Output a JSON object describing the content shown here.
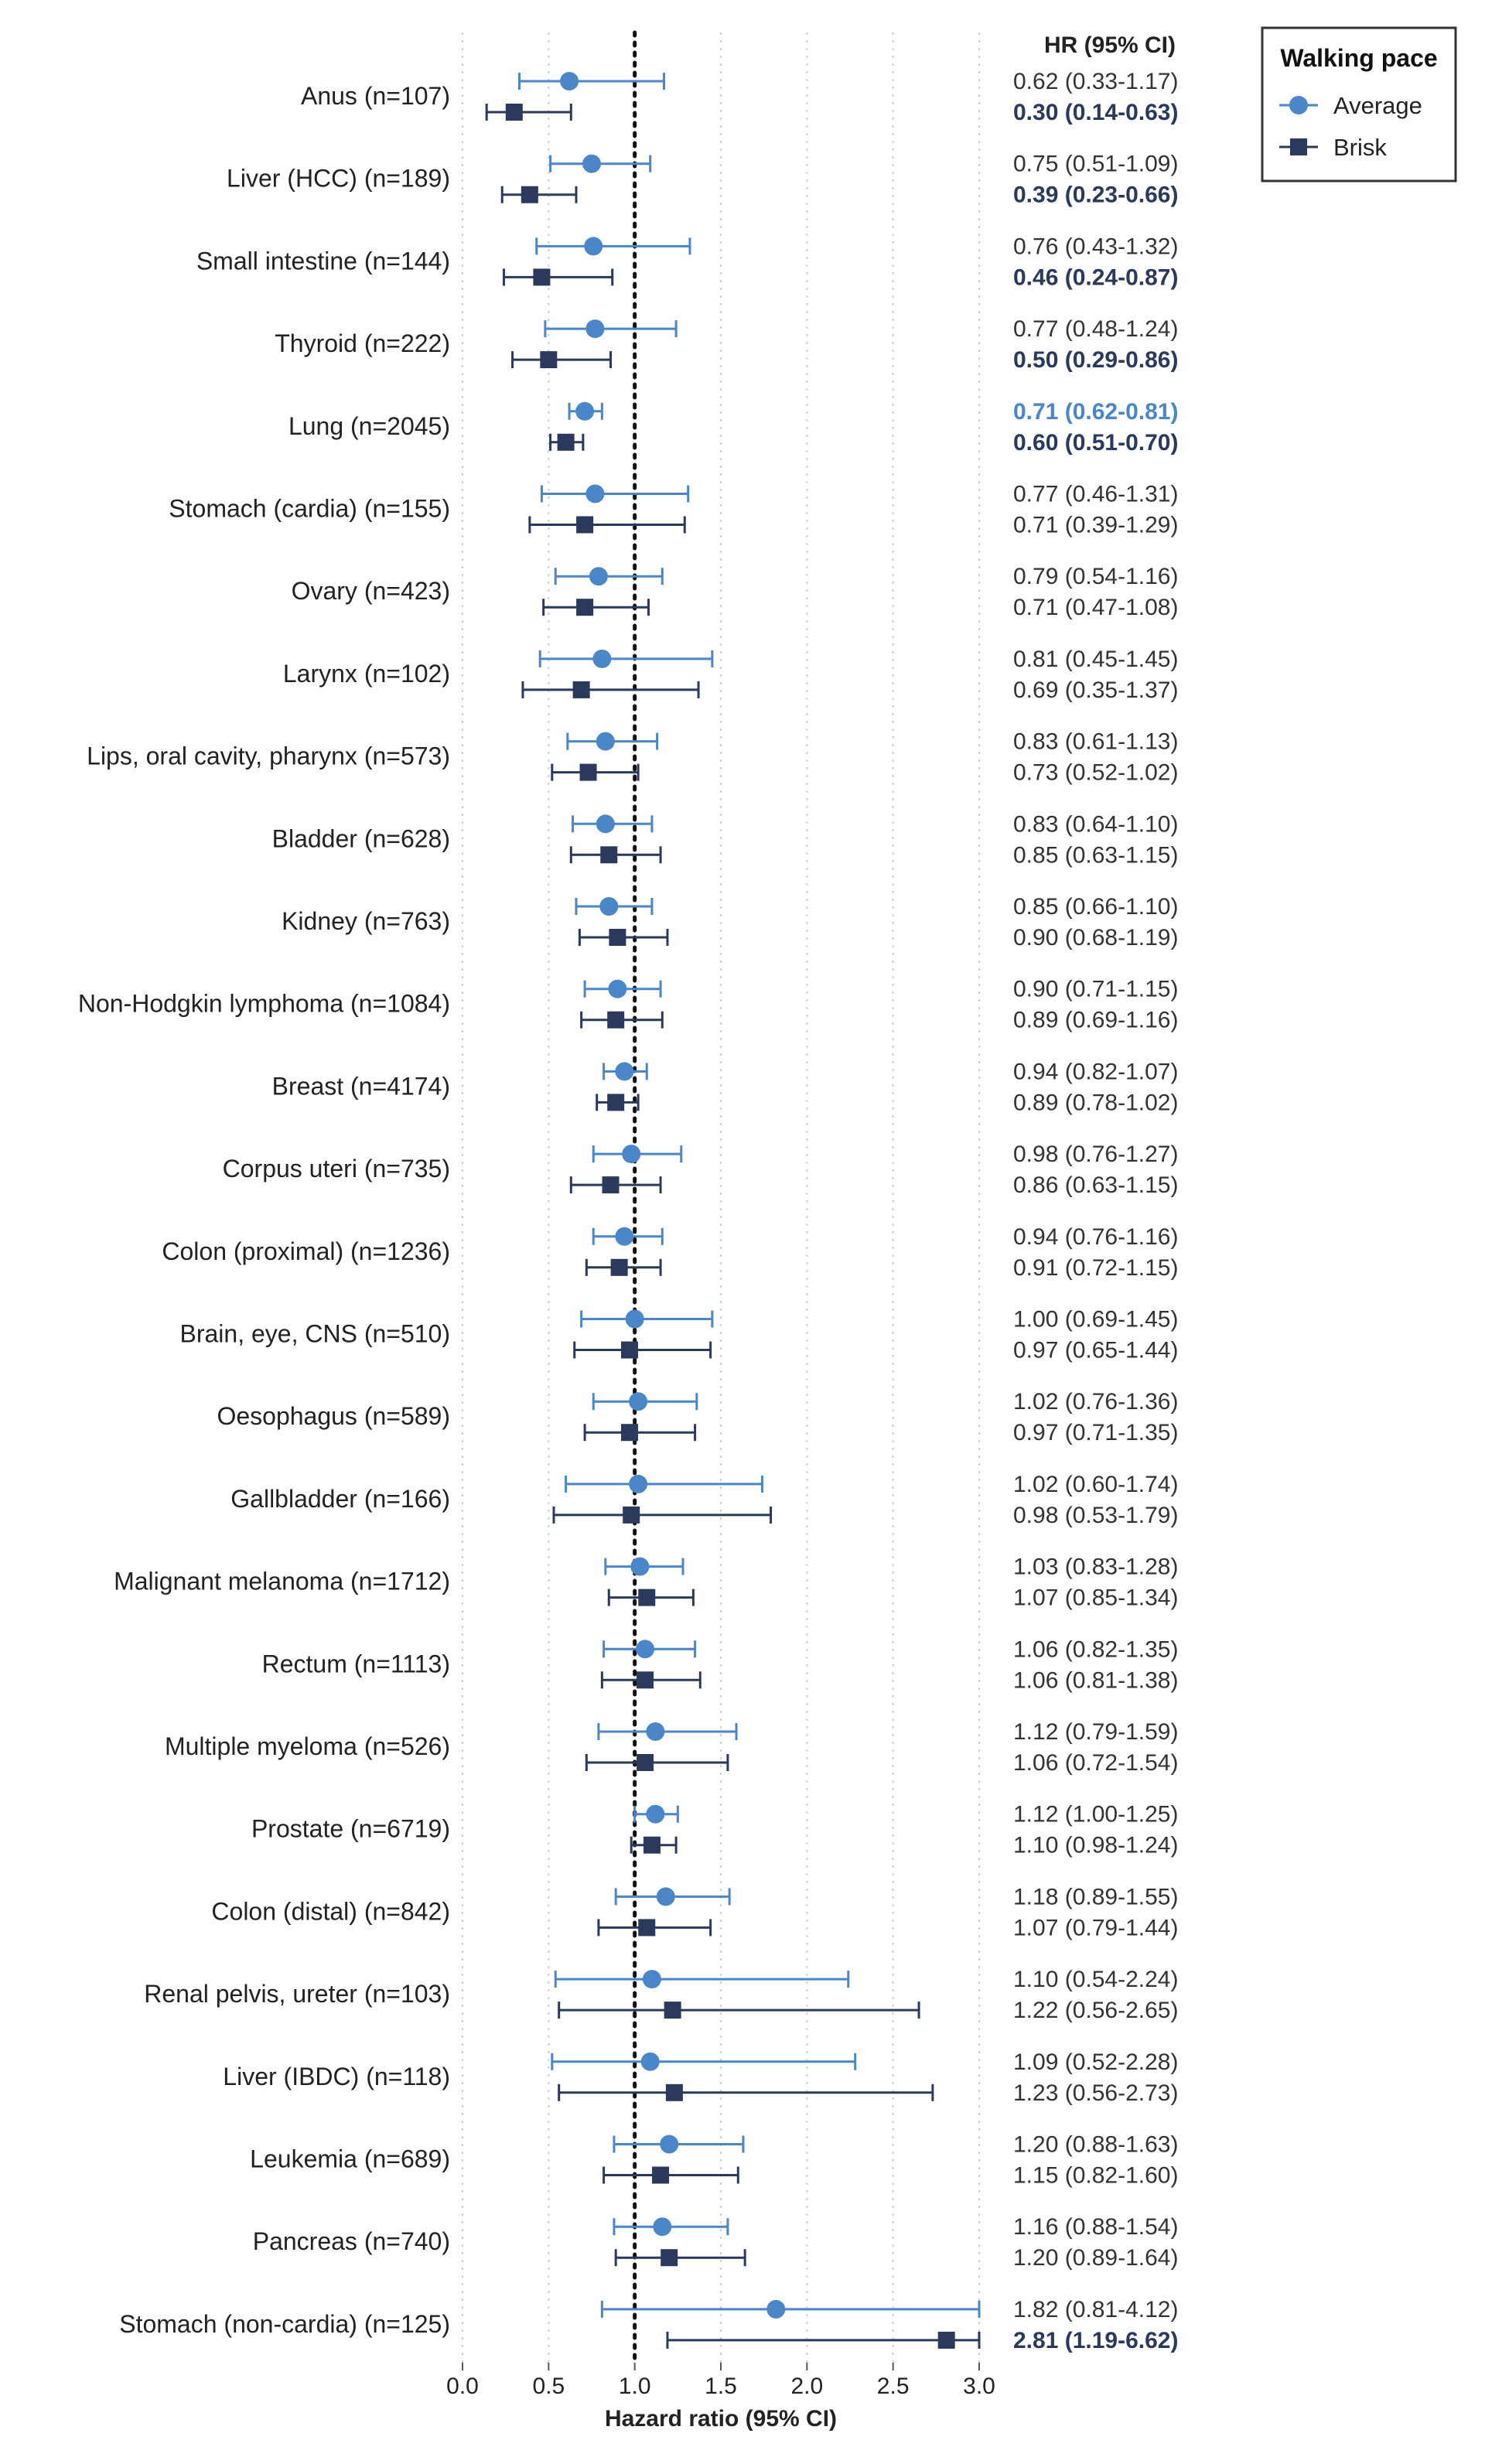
{
  "chart_data": {
    "type": "scatter",
    "subtype": "forest-plot",
    "xlabel": "Hazard ratio (95% CI)",
    "xlim": [
      0.0,
      3.0
    ],
    "xticks": [
      0.0,
      0.5,
      1.0,
      1.5,
      2.0,
      2.5,
      3.0
    ],
    "xtick_labels": [
      "0.0",
      "0.5",
      "1.0",
      "1.5",
      "2.0",
      "2.5",
      "3.0"
    ],
    "reference_line": 1.0,
    "grid": true,
    "hr_column_header": "HR (95% CI)",
    "legend": {
      "title": "Walking pace",
      "placement": "top-right",
      "entries": [
        {
          "name": "Average",
          "marker": "circle",
          "color": "#4a86c8"
        },
        {
          "name": "Brisk",
          "marker": "square",
          "color": "#2b3a5c"
        }
      ]
    },
    "series": [
      {
        "name": "Average",
        "color": "#4a86c8",
        "marker": "circle"
      },
      {
        "name": "Brisk",
        "color": "#2b3a5c",
        "marker": "square"
      }
    ],
    "rows": [
      {
        "label": "Anus (n=107)",
        "average": {
          "hr": 0.62,
          "lo": 0.33,
          "hi": 1.17,
          "text": "0.62 (0.33-1.17)",
          "sig": false
        },
        "brisk": {
          "hr": 0.3,
          "lo": 0.14,
          "hi": 0.63,
          "text": "0.30 (0.14-0.63)",
          "sig": true
        }
      },
      {
        "label": "Liver (HCC) (n=189)",
        "average": {
          "hr": 0.75,
          "lo": 0.51,
          "hi": 1.09,
          "text": "0.75 (0.51-1.09)",
          "sig": false
        },
        "brisk": {
          "hr": 0.39,
          "lo": 0.23,
          "hi": 0.66,
          "text": "0.39 (0.23-0.66)",
          "sig": true
        }
      },
      {
        "label": "Small intestine (n=144)",
        "average": {
          "hr": 0.76,
          "lo": 0.43,
          "hi": 1.32,
          "text": "0.76 (0.43-1.32)",
          "sig": false
        },
        "brisk": {
          "hr": 0.46,
          "lo": 0.24,
          "hi": 0.87,
          "text": "0.46 (0.24-0.87)",
          "sig": true
        }
      },
      {
        "label": "Thyroid (n=222)",
        "average": {
          "hr": 0.77,
          "lo": 0.48,
          "hi": 1.24,
          "text": "0.77 (0.48-1.24)",
          "sig": false
        },
        "brisk": {
          "hr": 0.5,
          "lo": 0.29,
          "hi": 0.86,
          "text": "0.50 (0.29-0.86)",
          "sig": true
        }
      },
      {
        "label": "Lung (n=2045)",
        "average": {
          "hr": 0.71,
          "lo": 0.62,
          "hi": 0.81,
          "text": "0.71 (0.62-0.81)",
          "sig": true
        },
        "brisk": {
          "hr": 0.6,
          "lo": 0.51,
          "hi": 0.7,
          "text": "0.60 (0.51-0.70)",
          "sig": true
        }
      },
      {
        "label": "Stomach (cardia) (n=155)",
        "average": {
          "hr": 0.77,
          "lo": 0.46,
          "hi": 1.31,
          "text": "0.77 (0.46-1.31)",
          "sig": false
        },
        "brisk": {
          "hr": 0.71,
          "lo": 0.39,
          "hi": 1.29,
          "text": "0.71 (0.39-1.29)",
          "sig": false
        }
      },
      {
        "label": "Ovary (n=423)",
        "average": {
          "hr": 0.79,
          "lo": 0.54,
          "hi": 1.16,
          "text": "0.79 (0.54-1.16)",
          "sig": false
        },
        "brisk": {
          "hr": 0.71,
          "lo": 0.47,
          "hi": 1.08,
          "text": "0.71 (0.47-1.08)",
          "sig": false
        }
      },
      {
        "label": "Larynx (n=102)",
        "average": {
          "hr": 0.81,
          "lo": 0.45,
          "hi": 1.45,
          "text": "0.81 (0.45-1.45)",
          "sig": false
        },
        "brisk": {
          "hr": 0.69,
          "lo": 0.35,
          "hi": 1.37,
          "text": "0.69 (0.35-1.37)",
          "sig": false
        }
      },
      {
        "label": "Lips, oral cavity, pharynx (n=573)",
        "average": {
          "hr": 0.83,
          "lo": 0.61,
          "hi": 1.13,
          "text": "0.83 (0.61-1.13)",
          "sig": false
        },
        "brisk": {
          "hr": 0.73,
          "lo": 0.52,
          "hi": 1.02,
          "text": "0.73 (0.52-1.02)",
          "sig": false
        }
      },
      {
        "label": "Bladder (n=628)",
        "average": {
          "hr": 0.83,
          "lo": 0.64,
          "hi": 1.1,
          "text": "0.83 (0.64-1.10)",
          "sig": false
        },
        "brisk": {
          "hr": 0.85,
          "lo": 0.63,
          "hi": 1.15,
          "text": "0.85 (0.63-1.15)",
          "sig": false
        }
      },
      {
        "label": "Kidney (n=763)",
        "average": {
          "hr": 0.85,
          "lo": 0.66,
          "hi": 1.1,
          "text": "0.85 (0.66-1.10)",
          "sig": false
        },
        "brisk": {
          "hr": 0.9,
          "lo": 0.68,
          "hi": 1.19,
          "text": "0.90 (0.68-1.19)",
          "sig": false
        }
      },
      {
        "label": "Non-Hodgkin lymphoma (n=1084)",
        "average": {
          "hr": 0.9,
          "lo": 0.71,
          "hi": 1.15,
          "text": "0.90 (0.71-1.15)",
          "sig": false
        },
        "brisk": {
          "hr": 0.89,
          "lo": 0.69,
          "hi": 1.16,
          "text": "0.89 (0.69-1.16)",
          "sig": false
        }
      },
      {
        "label": "Breast (n=4174)",
        "average": {
          "hr": 0.94,
          "lo": 0.82,
          "hi": 1.07,
          "text": "0.94 (0.82-1.07)",
          "sig": false
        },
        "brisk": {
          "hr": 0.89,
          "lo": 0.78,
          "hi": 1.02,
          "text": "0.89 (0.78-1.02)",
          "sig": false
        }
      },
      {
        "label": "Corpus uteri (n=735)",
        "average": {
          "hr": 0.98,
          "lo": 0.76,
          "hi": 1.27,
          "text": "0.98 (0.76-1.27)",
          "sig": false
        },
        "brisk": {
          "hr": 0.86,
          "lo": 0.63,
          "hi": 1.15,
          "text": "0.86 (0.63-1.15)",
          "sig": false
        }
      },
      {
        "label": "Colon (proximal) (n=1236)",
        "average": {
          "hr": 0.94,
          "lo": 0.76,
          "hi": 1.16,
          "text": "0.94 (0.76-1.16)",
          "sig": false
        },
        "brisk": {
          "hr": 0.91,
          "lo": 0.72,
          "hi": 1.15,
          "text": "0.91 (0.72-1.15)",
          "sig": false
        }
      },
      {
        "label": "Brain, eye, CNS (n=510)",
        "average": {
          "hr": 1.0,
          "lo": 0.69,
          "hi": 1.45,
          "text": "1.00 (0.69-1.45)",
          "sig": false
        },
        "brisk": {
          "hr": 0.97,
          "lo": 0.65,
          "hi": 1.44,
          "text": "0.97 (0.65-1.44)",
          "sig": false
        }
      },
      {
        "label": "Oesophagus (n=589)",
        "average": {
          "hr": 1.02,
          "lo": 0.76,
          "hi": 1.36,
          "text": "1.02 (0.76-1.36)",
          "sig": false
        },
        "brisk": {
          "hr": 0.97,
          "lo": 0.71,
          "hi": 1.35,
          "text": "0.97 (0.71-1.35)",
          "sig": false
        }
      },
      {
        "label": "Gallbladder (n=166)",
        "average": {
          "hr": 1.02,
          "lo": 0.6,
          "hi": 1.74,
          "text": "1.02 (0.60-1.74)",
          "sig": false
        },
        "brisk": {
          "hr": 0.98,
          "lo": 0.53,
          "hi": 1.79,
          "text": "0.98 (0.53-1.79)",
          "sig": false
        }
      },
      {
        "label": "Malignant melanoma (n=1712)",
        "average": {
          "hr": 1.03,
          "lo": 0.83,
          "hi": 1.28,
          "text": "1.03 (0.83-1.28)",
          "sig": false
        },
        "brisk": {
          "hr": 1.07,
          "lo": 0.85,
          "hi": 1.34,
          "text": "1.07 (0.85-1.34)",
          "sig": false
        }
      },
      {
        "label": "Rectum (n=1113)",
        "average": {
          "hr": 1.06,
          "lo": 0.82,
          "hi": 1.35,
          "text": "1.06 (0.82-1.35)",
          "sig": false
        },
        "brisk": {
          "hr": 1.06,
          "lo": 0.81,
          "hi": 1.38,
          "text": "1.06 (0.81-1.38)",
          "sig": false
        }
      },
      {
        "label": "Multiple myeloma (n=526)",
        "average": {
          "hr": 1.12,
          "lo": 0.79,
          "hi": 1.59,
          "text": "1.12 (0.79-1.59)",
          "sig": false
        },
        "brisk": {
          "hr": 1.06,
          "lo": 0.72,
          "hi": 1.54,
          "text": "1.06 (0.72-1.54)",
          "sig": false
        }
      },
      {
        "label": "Prostate (n=6719)",
        "average": {
          "hr": 1.12,
          "lo": 1.0,
          "hi": 1.25,
          "text": "1.12 (1.00-1.25)",
          "sig": false
        },
        "brisk": {
          "hr": 1.1,
          "lo": 0.98,
          "hi": 1.24,
          "text": "1.10 (0.98-1.24)",
          "sig": false
        }
      },
      {
        "label": "Colon (distal) (n=842)",
        "average": {
          "hr": 1.18,
          "lo": 0.89,
          "hi": 1.55,
          "text": "1.18 (0.89-1.55)",
          "sig": false
        },
        "brisk": {
          "hr": 1.07,
          "lo": 0.79,
          "hi": 1.44,
          "text": "1.07 (0.79-1.44)",
          "sig": false
        }
      },
      {
        "label": "Renal pelvis, ureter (n=103)",
        "average": {
          "hr": 1.1,
          "lo": 0.54,
          "hi": 2.24,
          "text": "1.10 (0.54-2.24)",
          "sig": false
        },
        "brisk": {
          "hr": 1.22,
          "lo": 0.56,
          "hi": 2.65,
          "text": "1.22 (0.56-2.65)",
          "sig": false
        }
      },
      {
        "label": "Liver (IBDC) (n=118)",
        "average": {
          "hr": 1.09,
          "lo": 0.52,
          "hi": 2.28,
          "text": "1.09 (0.52-2.28)",
          "sig": false
        },
        "brisk": {
          "hr": 1.23,
          "lo": 0.56,
          "hi": 2.73,
          "text": "1.23 (0.56-2.73)",
          "sig": false
        }
      },
      {
        "label": "Leukemia (n=689)",
        "average": {
          "hr": 1.2,
          "lo": 0.88,
          "hi": 1.63,
          "text": "1.20 (0.88-1.63)",
          "sig": false
        },
        "brisk": {
          "hr": 1.15,
          "lo": 0.82,
          "hi": 1.6,
          "text": "1.15 (0.82-1.60)",
          "sig": false
        }
      },
      {
        "label": "Pancreas (n=740)",
        "average": {
          "hr": 1.16,
          "lo": 0.88,
          "hi": 1.54,
          "text": "1.16 (0.88-1.54)",
          "sig": false
        },
        "brisk": {
          "hr": 1.2,
          "lo": 0.89,
          "hi": 1.64,
          "text": "1.20 (0.89-1.64)",
          "sig": false
        }
      },
      {
        "label": "Stomach (non-cardia) (n=125)",
        "average": {
          "hr": 1.82,
          "lo": 0.81,
          "hi": 4.12,
          "text": "1.82 (0.81-4.12)",
          "sig": false
        },
        "brisk": {
          "hr": 2.81,
          "lo": 1.19,
          "hi": 6.62,
          "text": "2.81 (1.19-6.62)",
          "sig": true
        }
      }
    ]
  }
}
